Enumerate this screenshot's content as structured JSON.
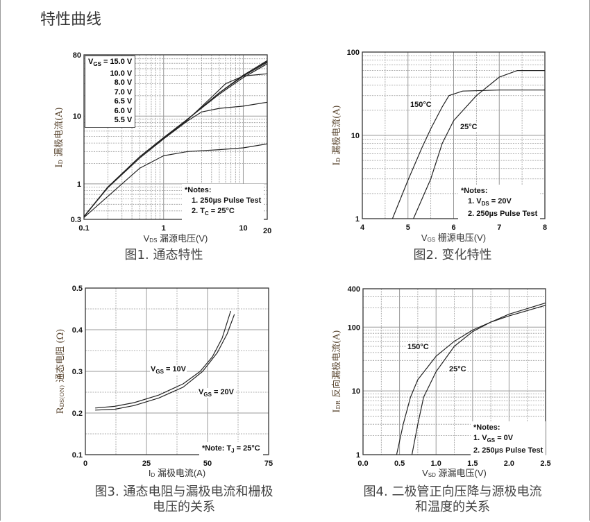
{
  "page_title": "特性曲线",
  "chart_data": [
    {
      "type": "line",
      "caption": "图1. 通态特性",
      "xlabel": {
        "main": "V",
        "sub": "DS",
        "rest": " 漏源电压(V)"
      },
      "ylabel": {
        "main": "I",
        "sub": "D",
        "rest": " 漏极电流(A)"
      },
      "xscale": "log",
      "yscale": "log",
      "xlim": [
        0.1,
        20
      ],
      "ylim": [
        0.3,
        80
      ],
      "xticks": [
        "0.1",
        "1",
        "10",
        "20"
      ],
      "yticks": [
        "80",
        "10",
        "1",
        "0.3"
      ],
      "grid": true,
      "legend": {
        "position": "top-left",
        "head": {
          "main": "V",
          "sub": "GS",
          "rest": " = 15.0 V"
        },
        "entries": [
          "10.0 V",
          "8.0 V",
          "7.0 V",
          "6.5 V",
          "6.0 V",
          "5.5 V"
        ]
      },
      "notes": [
        {
          "pre": "*Notes:"
        },
        {
          "pre": "1. 250µs Pulse Test"
        },
        {
          "pre": "2. T",
          "sub": "C",
          "post": " = 25°C"
        }
      ],
      "series": [
        {
          "name": "15.0 V",
          "x": [
            0.1,
            0.2,
            0.5,
            1,
            2,
            5,
            10,
            20
          ],
          "y": [
            0.33,
            0.9,
            2.5,
            4.8,
            9,
            22,
            40,
            66
          ]
        },
        {
          "name": "10.0 V",
          "x": [
            0.1,
            0.2,
            0.5,
            1,
            2,
            5,
            10,
            20
          ],
          "y": [
            0.33,
            0.9,
            2.5,
            4.8,
            9,
            22,
            40,
            64
          ]
        },
        {
          "name": "8.0 V",
          "x": [
            0.1,
            0.2,
            0.5,
            1,
            2,
            5,
            10,
            20
          ],
          "y": [
            0.33,
            0.9,
            2.5,
            4.8,
            9,
            22,
            39,
            62
          ]
        },
        {
          "name": "7.0 V",
          "x": [
            0.1,
            0.2,
            0.5,
            1,
            2,
            5,
            10,
            20
          ],
          "y": [
            0.33,
            0.9,
            2.5,
            4.8,
            9,
            21,
            37,
            59
          ]
        },
        {
          "name": "6.5 V",
          "x": [
            0.1,
            0.2,
            0.5,
            1,
            2,
            4,
            6,
            10,
            20
          ],
          "y": [
            0.33,
            0.9,
            2.5,
            4.7,
            8.8,
            19,
            30,
            39,
            42
          ]
        },
        {
          "name": "6.0 V",
          "x": [
            0.1,
            0.2,
            0.5,
            1,
            2,
            3,
            5,
            10,
            20
          ],
          "y": [
            0.33,
            0.88,
            2.4,
            4.6,
            8.5,
            11.5,
            13,
            14,
            16
          ]
        },
        {
          "name": "5.5 V",
          "x": [
            0.1,
            0.3,
            0.5,
            1,
            2,
            5,
            10,
            20
          ],
          "y": [
            0.32,
            1.0,
            1.7,
            2.6,
            3.0,
            3.2,
            3.4,
            3.9
          ]
        }
      ]
    },
    {
      "type": "line",
      "caption": "图2. 变化特性",
      "xlabel": {
        "main": "V",
        "sub": "GS",
        "rest": " 栅源电压(V)"
      },
      "ylabel": {
        "main": "I",
        "sub": "D",
        "rest": " 漏极电流(A)"
      },
      "xscale": "linear",
      "yscale": "log",
      "xlim": [
        4,
        8
      ],
      "ylim": [
        1,
        100
      ],
      "xticks": [
        "4",
        "5",
        "6",
        "7",
        "8"
      ],
      "yticks": [
        "100",
        "10",
        "1"
      ],
      "grid": true,
      "notes": [
        {
          "pre": "*Notes:"
        },
        {
          "pre": "1. V",
          "sub": "DS",
          "post": " = 20V"
        },
        {
          "pre": "2. 250µs Pulse Test"
        }
      ],
      "series": [
        {
          "name": "150°C",
          "x": [
            4.66,
            5,
            5.3,
            5.5,
            5.75,
            5.9,
            6.2,
            7,
            8
          ],
          "y": [
            1,
            2.9,
            7,
            12,
            22,
            30,
            34,
            35,
            35
          ]
        },
        {
          "name": "25°C",
          "x": [
            5.12,
            5.5,
            5.75,
            6,
            6.5,
            7,
            7.4,
            8
          ],
          "y": [
            1,
            3,
            8,
            15,
            30,
            50,
            60,
            60
          ]
        }
      ]
    },
    {
      "type": "line",
      "caption": [
        "图3. 通态电阻与漏极电流和栅极",
        "电压的关系"
      ],
      "xlabel": {
        "main": "I",
        "sub": "D",
        "rest": " 漏极电流(A)"
      },
      "ylabel": {
        "main": "R",
        "sub": "DS(ON)",
        "rest": " 通态电阻 (Ω)"
      },
      "xscale": "linear",
      "yscale": "linear",
      "xlim": [
        0,
        75
      ],
      "ylim": [
        0.1,
        0.5
      ],
      "xticks": [
        "0",
        "25",
        "50",
        "75"
      ],
      "yticks": [
        "0.5",
        "0.4",
        "0.3",
        "0.2",
        "0.1"
      ],
      "grid": true,
      "notes": [
        {
          "pre": "*Note: T",
          "sub": "J",
          "post": " = 25°C"
        }
      ],
      "series": [
        {
          "name": {
            "main": "V",
            "sub": "GS",
            "rest": " = 10V"
          },
          "x": [
            4,
            12,
            20,
            30,
            40,
            47,
            52,
            56,
            59.5
          ],
          "y": [
            0.212,
            0.216,
            0.225,
            0.243,
            0.27,
            0.3,
            0.335,
            0.38,
            0.445
          ]
        },
        {
          "name": {
            "main": "V",
            "sub": "GS",
            "rest": " = 20V"
          },
          "x": [
            4,
            12,
            20,
            30,
            40,
            48,
            54,
            58,
            61
          ],
          "y": [
            0.207,
            0.209,
            0.218,
            0.236,
            0.262,
            0.3,
            0.345,
            0.39,
            0.437
          ]
        }
      ]
    },
    {
      "type": "line",
      "caption": [
        "图4. 二极管正向压降与源极电流",
        "和温度的关系"
      ],
      "xlabel": {
        "main": "V",
        "sub": "SD",
        "rest": " 源漏电压(V)"
      },
      "ylabel": {
        "main": "I",
        "sub": "DR",
        "rest": " 反向漏极电流(A)"
      },
      "xscale": "linear",
      "yscale": "log",
      "xlim": [
        0,
        2.5
      ],
      "ylim": [
        1,
        400
      ],
      "xticks": [
        "0.0",
        "0.5",
        "1.0",
        "1.5",
        "2.0",
        "2.5"
      ],
      "yticks": [
        "400",
        "100",
        "10",
        "1"
      ],
      "grid": true,
      "notes": [
        {
          "pre": "*Notes:"
        },
        {
          "pre": "1. V",
          "sub": "GS",
          "post": " = 0V"
        },
        {
          "pre": "2. 250µs Pulse Test"
        }
      ],
      "series": [
        {
          "name": "150°C",
          "x": [
            0.46,
            0.55,
            0.65,
            0.75,
            1.0,
            1.25,
            1.5,
            1.75,
            2.0,
            2.5
          ],
          "y": [
            1,
            3,
            8,
            15,
            35,
            60,
            90,
            120,
            160,
            240
          ]
        },
        {
          "name": "25°C",
          "x": [
            0.67,
            0.75,
            0.83,
            1.0,
            1.25,
            1.5,
            1.75,
            2.0,
            2.5
          ],
          "y": [
            1,
            3,
            8,
            20,
            50,
            85,
            120,
            150,
            220
          ]
        }
      ]
    }
  ],
  "colors": {
    "curve": "#222222",
    "grid": "#999999",
    "axis": "#333333",
    "ylabel": "#5a4630",
    "caption": "#444444"
  }
}
